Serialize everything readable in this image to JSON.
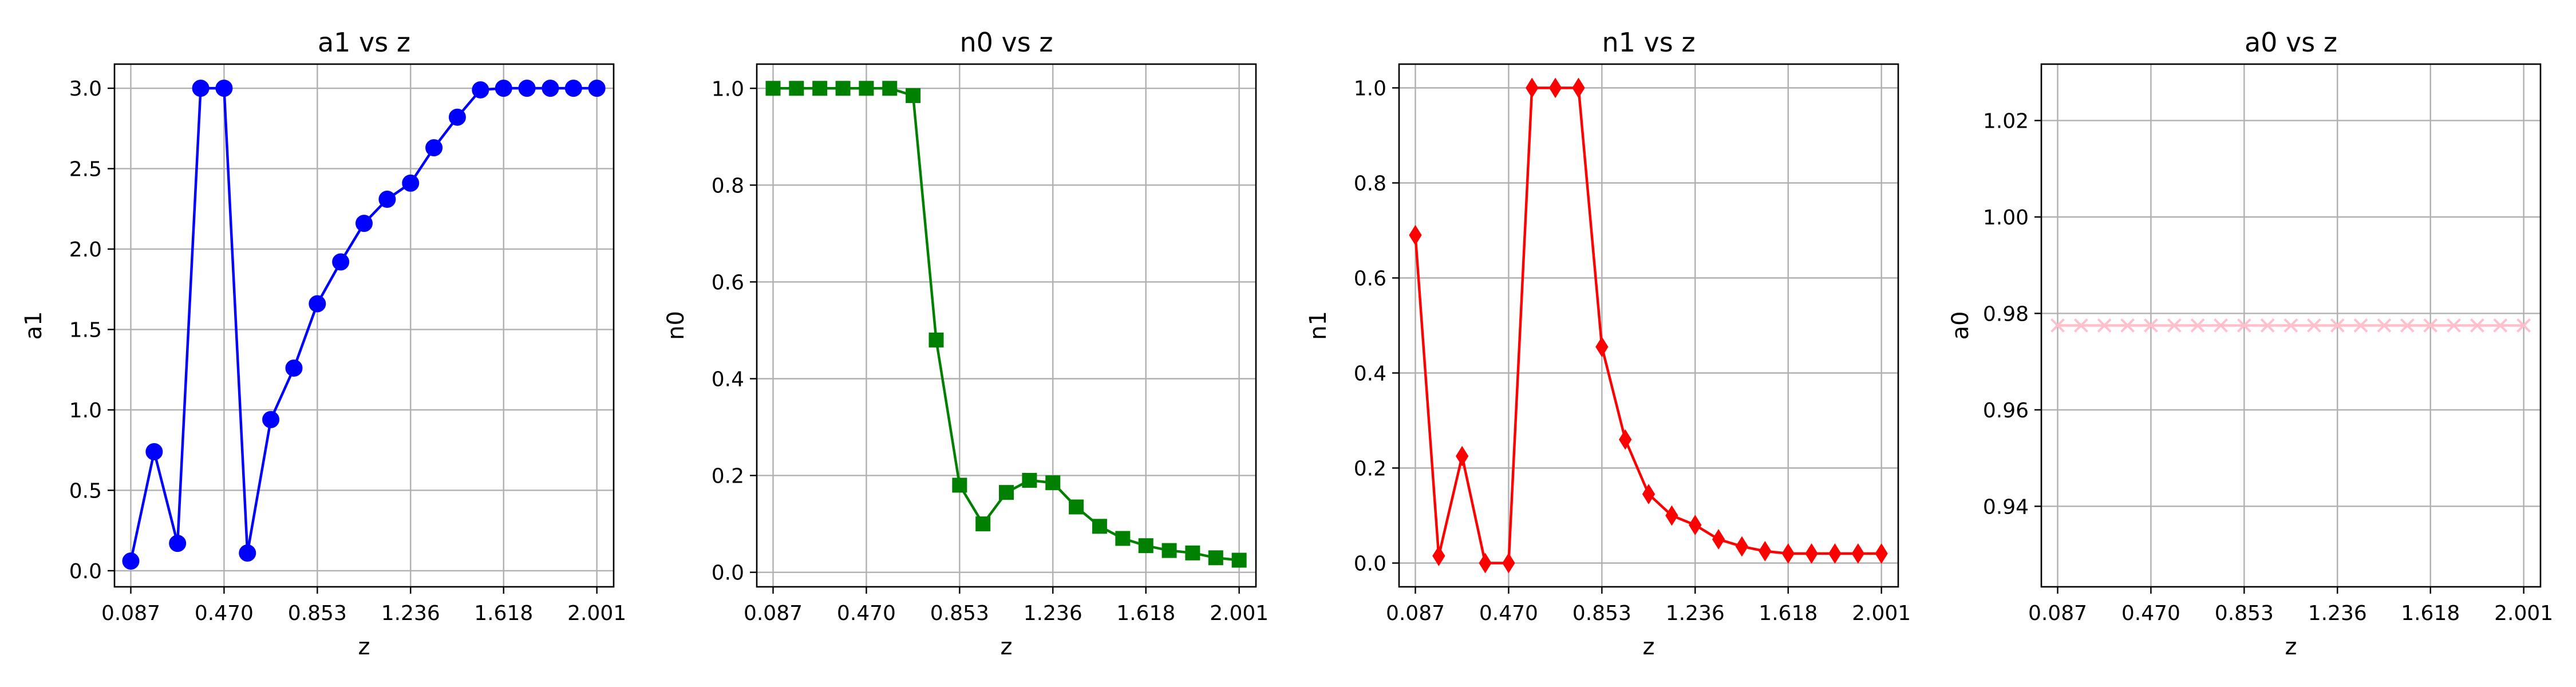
{
  "chart_data": [
    {
      "type": "line",
      "title": "a1 vs z",
      "xlabel": "z",
      "ylabel": "a1",
      "color": "#0000ff",
      "marker": "circle",
      "xlim": [
        0.02,
        2.07
      ],
      "ylim": [
        -0.1,
        3.15
      ],
      "xticks": [
        0.087,
        0.47,
        0.853,
        1.236,
        1.618,
        2.001
      ],
      "xtick_labels": [
        "0.087",
        "0.470",
        "0.853",
        "1.236",
        "1.618",
        "2.001"
      ],
      "yticks": [
        0.0,
        0.5,
        1.0,
        1.5,
        2.0,
        2.5,
        3.0
      ],
      "ytick_labels": [
        "0.0",
        "0.5",
        "1.0",
        "1.5",
        "2.0",
        "2.5",
        "3.0"
      ],
      "grid": true,
      "x": [
        0.087,
        0.183,
        0.279,
        0.374,
        0.47,
        0.566,
        0.662,
        0.757,
        0.853,
        0.949,
        1.045,
        1.14,
        1.236,
        1.332,
        1.428,
        1.523,
        1.618,
        1.714,
        1.81,
        1.905,
        2.001
      ],
      "values": [
        0.06,
        0.74,
        0.17,
        3.0,
        3.0,
        0.11,
        0.94,
        1.26,
        1.66,
        1.92,
        2.16,
        2.31,
        2.41,
        2.63,
        2.82,
        2.99,
        3.0,
        3.0,
        3.0,
        3.0,
        3.0
      ]
    },
    {
      "type": "line",
      "title": "n0 vs z",
      "xlabel": "z",
      "ylabel": "n0",
      "color": "#008000",
      "marker": "square",
      "xlim": [
        0.02,
        2.07
      ],
      "ylim": [
        -0.03,
        1.05
      ],
      "xticks": [
        0.087,
        0.47,
        0.853,
        1.236,
        1.618,
        2.001
      ],
      "xtick_labels": [
        "0.087",
        "0.470",
        "0.853",
        "1.236",
        "1.618",
        "2.001"
      ],
      "yticks": [
        0.0,
        0.2,
        0.4,
        0.6,
        0.8,
        1.0
      ],
      "ytick_labels": [
        "0.0",
        "0.2",
        "0.4",
        "0.6",
        "0.8",
        "1.0"
      ],
      "grid": true,
      "x": [
        0.087,
        0.183,
        0.279,
        0.374,
        0.47,
        0.566,
        0.662,
        0.757,
        0.853,
        0.949,
        1.045,
        1.14,
        1.236,
        1.332,
        1.428,
        1.523,
        1.618,
        1.714,
        1.81,
        1.905,
        2.001
      ],
      "values": [
        1.0,
        1.0,
        1.0,
        1.0,
        1.0,
        1.0,
        0.985,
        0.48,
        0.18,
        0.1,
        0.165,
        0.19,
        0.185,
        0.135,
        0.095,
        0.07,
        0.055,
        0.045,
        0.04,
        0.03,
        0.025
      ]
    },
    {
      "type": "line",
      "title": "n1 vs z",
      "xlabel": "z",
      "ylabel": "n1",
      "color": "#ff0000",
      "marker": "thin-diamond",
      "xlim": [
        0.02,
        2.07
      ],
      "ylim": [
        -0.05,
        1.05
      ],
      "xticks": [
        0.087,
        0.47,
        0.853,
        1.236,
        1.618,
        2.001
      ],
      "xtick_labels": [
        "0.087",
        "0.470",
        "0.853",
        "1.236",
        "1.618",
        "2.001"
      ],
      "yticks": [
        0.0,
        0.2,
        0.4,
        0.6,
        0.8,
        1.0
      ],
      "ytick_labels": [
        "0.0",
        "0.2",
        "0.4",
        "0.6",
        "0.8",
        "1.0"
      ],
      "grid": true,
      "x": [
        0.087,
        0.183,
        0.279,
        0.374,
        0.47,
        0.566,
        0.662,
        0.757,
        0.853,
        0.949,
        1.045,
        1.14,
        1.236,
        1.332,
        1.428,
        1.523,
        1.618,
        1.714,
        1.81,
        1.905,
        2.001
      ],
      "values": [
        0.69,
        0.015,
        0.225,
        0.0,
        0.0,
        1.0,
        1.0,
        1.0,
        0.455,
        0.26,
        0.145,
        0.1,
        0.08,
        0.05,
        0.035,
        0.025,
        0.02,
        0.02,
        0.02,
        0.02,
        0.02
      ]
    },
    {
      "type": "line",
      "title": "a0 vs z",
      "xlabel": "z",
      "ylabel": "a0",
      "color": "#ffc0cb",
      "marker": "x",
      "xlim": [
        0.02,
        2.07
      ],
      "ylim": [
        0.9233,
        1.0317
      ],
      "xticks": [
        0.087,
        0.47,
        0.853,
        1.236,
        1.618,
        2.001
      ],
      "xtick_labels": [
        "0.087",
        "0.470",
        "0.853",
        "1.236",
        "1.618",
        "2.001"
      ],
      "yticks": [
        0.94,
        0.96,
        0.98,
        1.0,
        1.02
      ],
      "ytick_labels": [
        "0.94",
        "0.96",
        "0.98",
        "1.00",
        "1.02"
      ],
      "grid": true,
      "x": [
        0.087,
        0.183,
        0.279,
        0.374,
        0.47,
        0.566,
        0.662,
        0.757,
        0.853,
        0.949,
        1.045,
        1.14,
        1.236,
        1.332,
        1.428,
        1.523,
        1.618,
        1.714,
        1.81,
        1.905,
        2.001
      ],
      "values": [
        0.9775,
        0.9775,
        0.9775,
        0.9775,
        0.9775,
        0.9775,
        0.9775,
        0.9775,
        0.9775,
        0.9775,
        0.9775,
        0.9775,
        0.9775,
        0.9775,
        0.9775,
        0.9775,
        0.9775,
        0.9775,
        0.9775,
        0.9775,
        0.9775
      ]
    }
  ]
}
